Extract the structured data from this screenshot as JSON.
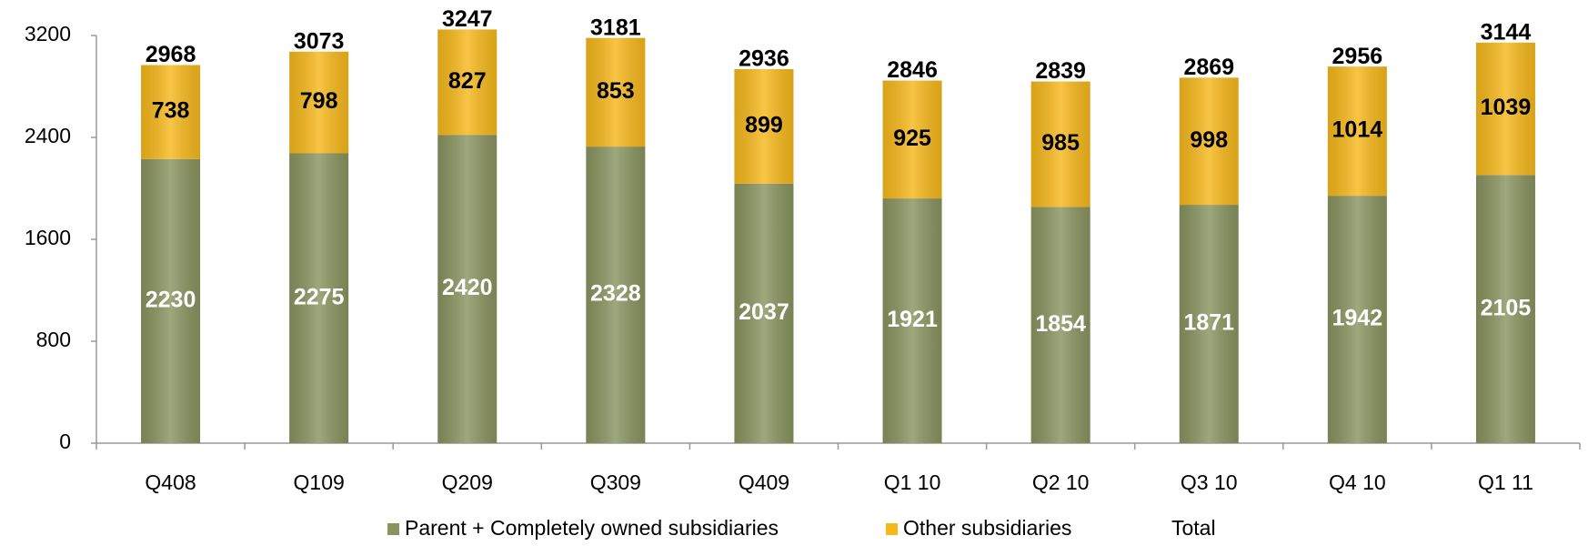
{
  "chart_data": {
    "type": "stacked_bar",
    "categories": [
      "Q408",
      "Q109",
      "Q209",
      "Q309",
      "Q409",
      "Q1 10",
      "Q2 10",
      "Q3 10",
      "Q4 10",
      "Q1 11"
    ],
    "series": [
      {
        "name": "Parent + Completely owned subsidiaries",
        "color": "#8a9460",
        "values": [
          2230,
          2275,
          2420,
          2328,
          2037,
          1921,
          1854,
          1871,
          1942,
          2105
        ]
      },
      {
        "name": "Other subsidiaries",
        "color": "#f6b81c",
        "values": [
          738,
          798,
          827,
          853,
          899,
          925,
          985,
          998,
          1014,
          1039
        ]
      },
      {
        "name": "Total",
        "values": [
          2968,
          3073,
          3247,
          3181,
          2936,
          2846,
          2839,
          2869,
          2956,
          3144
        ]
      }
    ],
    "ylim": [
      0,
      3200
    ],
    "yticks": [
      0,
      800,
      1600,
      2400,
      3200
    ]
  }
}
